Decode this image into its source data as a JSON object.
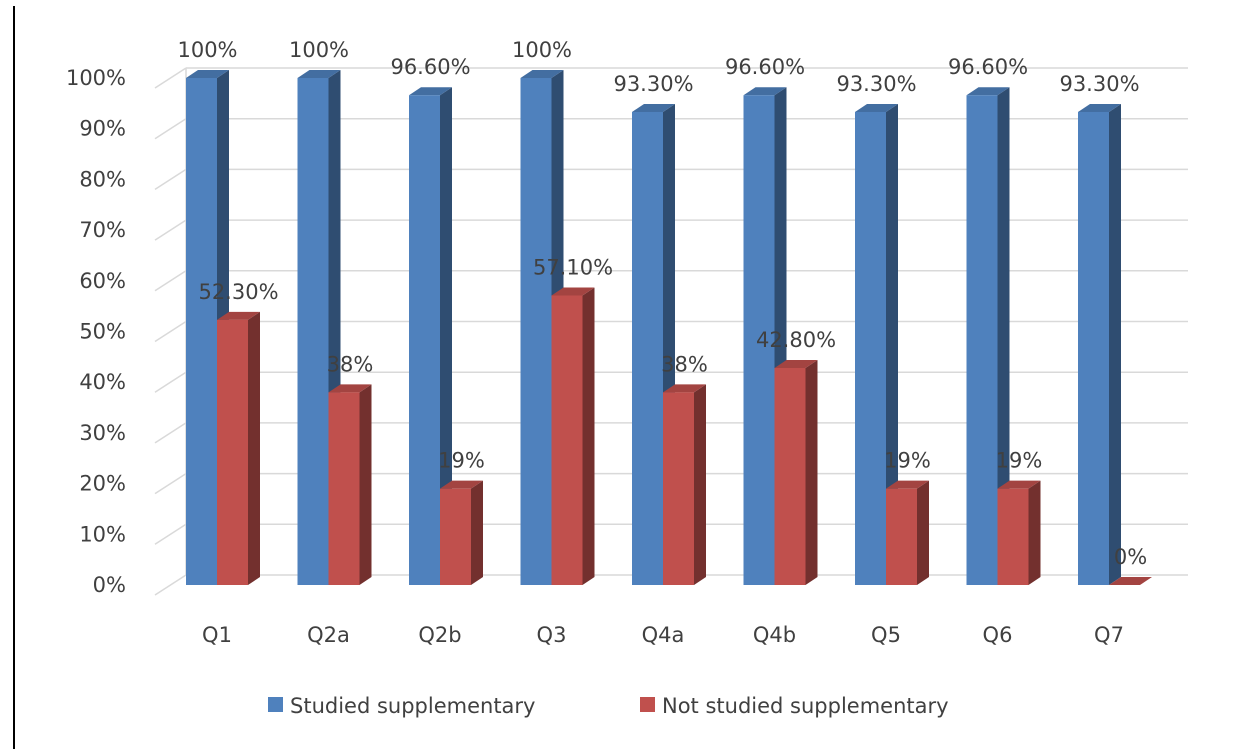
{
  "chart_data": {
    "type": "bar",
    "style": "3d-clustered-column",
    "title": "",
    "xlabel": "",
    "ylabel": "",
    "categories": [
      "Q1",
      "Q2a",
      "Q2b",
      "Q3",
      "Q4a",
      "Q4b",
      "Q5",
      "Q6",
      "Q7"
    ],
    "series": [
      {
        "name": "Studied supplementary",
        "color": "#4f81bd",
        "values": [
          100,
          100,
          96.6,
          100,
          93.3,
          96.6,
          93.3,
          96.6,
          93.3
        ],
        "labels": [
          "100%",
          "100%",
          "96.60%",
          "100%",
          "93.30%",
          "96.60%",
          "93.30%",
          "96.60%",
          "93.30%"
        ]
      },
      {
        "name": "Not studied supplementary",
        "color": "#c0504d",
        "values": [
          52.3,
          38,
          19,
          57.1,
          38,
          42.8,
          19,
          19,
          0
        ],
        "labels": [
          "52.30%",
          "38%",
          "19%",
          "57.10%",
          "38%",
          "42.80%",
          "19%",
          "19%",
          "0%"
        ]
      }
    ],
    "ylim": [
      0,
      100
    ],
    "yticks": [
      "0%",
      "10%",
      "20%",
      "30%",
      "40%",
      "50%",
      "60%",
      "70%",
      "80%",
      "90%",
      "100%"
    ],
    "grid": true,
    "legend_position": "bottom"
  }
}
